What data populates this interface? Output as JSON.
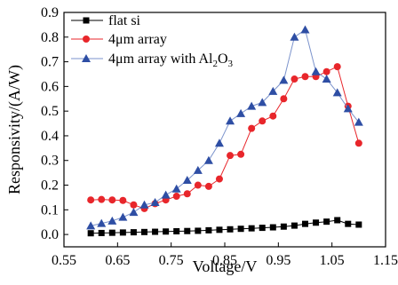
{
  "chart_data": {
    "type": "line",
    "title": "",
    "xlabel": "Voltage/V",
    "ylabel": "Responsivity/(A/W)",
    "xlim": [
      0.55,
      1.15
    ],
    "ylim": [
      -0.05,
      0.9
    ],
    "xticks": [
      "0.55",
      "0.65",
      "0.75",
      "0.85",
      "0.95",
      "1.05",
      "1.15"
    ],
    "yticks": [
      "0.0",
      "0.1",
      "0.2",
      "0.3",
      "0.4",
      "0.5",
      "0.6",
      "0.7",
      "0.8",
      "0.9"
    ],
    "grid": false,
    "legend_position": "top-left",
    "series": [
      {
        "name": "flat si",
        "marker": "square",
        "color": "#000000",
        "line_color": "#000000",
        "x": [
          0.6,
          0.62,
          0.64,
          0.66,
          0.68,
          0.7,
          0.72,
          0.74,
          0.76,
          0.78,
          0.8,
          0.82,
          0.84,
          0.86,
          0.88,
          0.9,
          0.92,
          0.94,
          0.96,
          0.98,
          1.0,
          1.02,
          1.04,
          1.06,
          1.08,
          1.1
        ],
        "y": [
          0.005,
          0.006,
          0.007,
          0.008,
          0.009,
          0.01,
          0.011,
          0.012,
          0.013,
          0.014,
          0.015,
          0.017,
          0.019,
          0.021,
          0.023,
          0.025,
          0.027,
          0.029,
          0.032,
          0.036,
          0.043,
          0.048,
          0.052,
          0.058,
          0.043,
          0.04
        ]
      },
      {
        "name": "4μm array",
        "marker": "circle",
        "color": "#e8262b",
        "line_color": "#e8262b",
        "x": [
          0.6,
          0.62,
          0.64,
          0.66,
          0.68,
          0.7,
          0.72,
          0.74,
          0.76,
          0.78,
          0.8,
          0.82,
          0.84,
          0.86,
          0.88,
          0.9,
          0.92,
          0.94,
          0.96,
          0.98,
          1.0,
          1.02,
          1.04,
          1.06,
          1.08,
          1.1
        ],
        "y": [
          0.14,
          0.142,
          0.14,
          0.138,
          0.12,
          0.105,
          0.125,
          0.14,
          0.155,
          0.165,
          0.2,
          0.195,
          0.225,
          0.32,
          0.325,
          0.43,
          0.46,
          0.48,
          0.55,
          0.63,
          0.64,
          0.64,
          0.66,
          0.68,
          0.52,
          0.37
        ]
      },
      {
        "name": "4μm array with Al2O3",
        "marker": "triangle",
        "color": "#2e4ea4",
        "line_color": "#7b93cc",
        "x": [
          0.6,
          0.62,
          0.64,
          0.66,
          0.68,
          0.7,
          0.72,
          0.74,
          0.76,
          0.78,
          0.8,
          0.82,
          0.84,
          0.86,
          0.88,
          0.9,
          0.92,
          0.94,
          0.96,
          0.98,
          1.0,
          1.02,
          1.04,
          1.06,
          1.08,
          1.1
        ],
        "y": [
          0.035,
          0.045,
          0.055,
          0.07,
          0.09,
          0.12,
          0.13,
          0.16,
          0.185,
          0.22,
          0.26,
          0.3,
          0.37,
          0.46,
          0.49,
          0.52,
          0.535,
          0.58,
          0.625,
          0.8,
          0.83,
          0.66,
          0.63,
          0.575,
          0.51,
          0.455
        ]
      }
    ]
  },
  "legend": {
    "items": [
      {
        "label": "flat si"
      },
      {
        "label": "4μm array"
      },
      {
        "label_main": "4μm array with Al",
        "sub1": "2",
        "mid": "O",
        "sub2": "3"
      }
    ]
  }
}
